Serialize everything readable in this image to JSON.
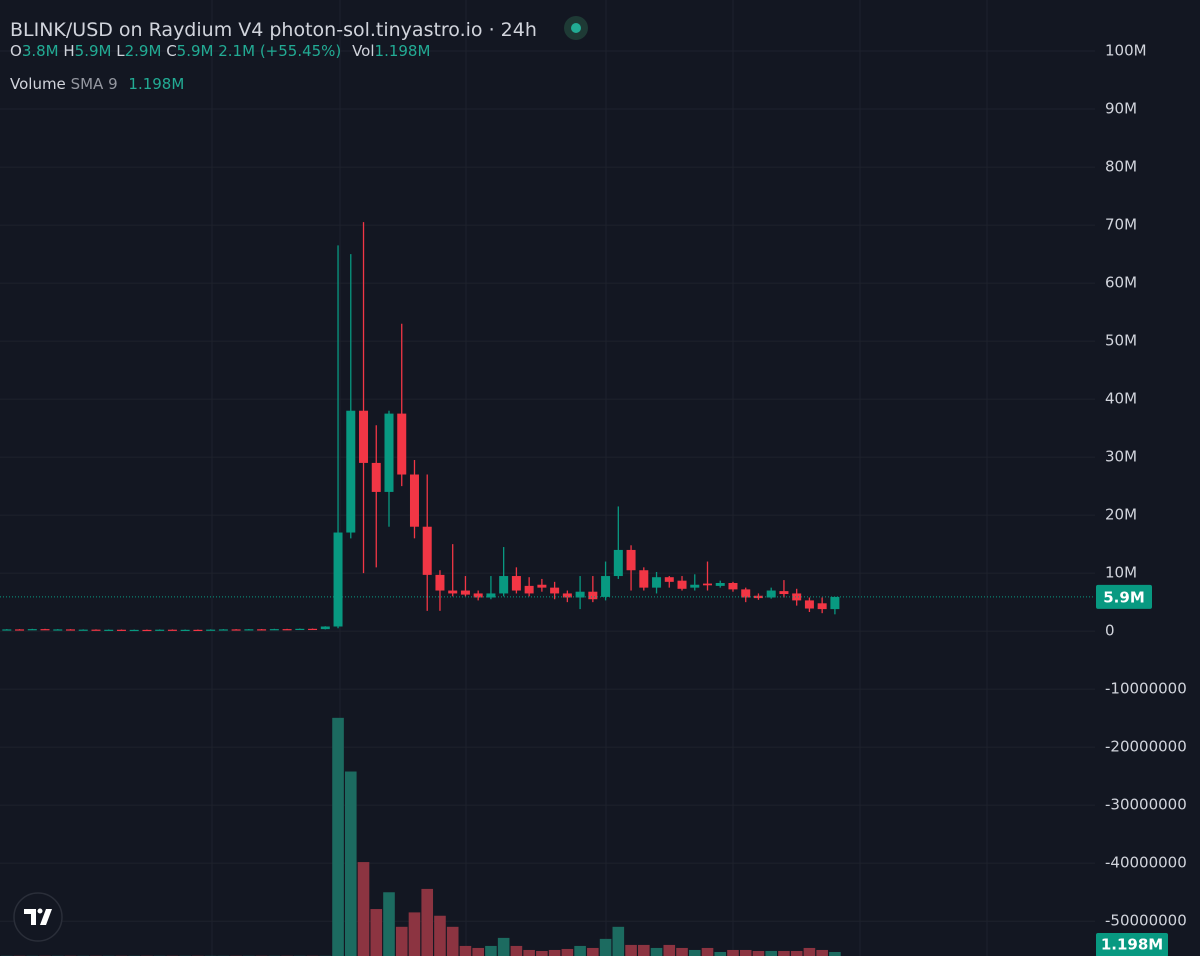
{
  "chart_data": {
    "type": "candlestick",
    "title": "BLINK/USD on Raydium V4 photon-sol.tinyastro.io · 24h",
    "readout": [
      {
        "label": "O",
        "value": "3.8M"
      },
      {
        "label": "H",
        "value": "5.9M"
      },
      {
        "label": "L",
        "value": "2.9M"
      },
      {
        "label": "C",
        "value": "5.9M"
      }
    ],
    "change": "2.1M (+55.45%)",
    "vol_label": "Vol",
    "vol_value": "1.198M",
    "up_color": "#089981",
    "down_color": "#f23645",
    "grid": true,
    "ylim": [
      -56000000,
      108800000
    ],
    "yticks": [
      {
        "value": 100000000,
        "label": "100M"
      },
      {
        "value": 90000000,
        "label": "90M"
      },
      {
        "value": 80000000,
        "label": "80M"
      },
      {
        "value": 70000000,
        "label": "70M"
      },
      {
        "value": 60000000,
        "label": "60M"
      },
      {
        "value": 50000000,
        "label": "50M"
      },
      {
        "value": 40000000,
        "label": "40M"
      },
      {
        "value": 30000000,
        "label": "30M"
      },
      {
        "value": 20000000,
        "label": "20M"
      },
      {
        "value": 10000000,
        "label": "10M"
      },
      0,
      -10000000,
      -20000000,
      -30000000,
      -40000000,
      -50000000
    ],
    "last_price": 5900000,
    "last_price_label": "5.9M",
    "open": [
      200000,
      300000,
      250000,
      350000,
      280000,
      300000,
      220000,
      260000,
      200000,
      240000,
      180000,
      220000,
      200000,
      250000,
      210000,
      230000,
      190000,
      260000,
      300000,
      260000,
      320000,
      280000,
      350000,
      300000,
      400000,
      350000,
      800000,
      17000000,
      38000000,
      29000000,
      24000000,
      37500000,
      27000000,
      18000000,
      9700000,
      7000000,
      7000000,
      6500000,
      5800000,
      6500000,
      9500000,
      7800000,
      8000000,
      7500000,
      6500000,
      5800000,
      6800000,
      5900000,
      9500000,
      14000000,
      10500000,
      7500000,
      9300000,
      8700000,
      7500000,
      8200000,
      7800000,
      8300000,
      7200000,
      6100000,
      5800000,
      6900000,
      6500000,
      5300000,
      4800000,
      3800000
    ],
    "high": [
      350000,
      350000,
      400000,
      400000,
      350000,
      350000,
      310000,
      310000,
      290000,
      290000,
      270000,
      270000,
      300000,
      300000,
      280000,
      280000,
      310000,
      350000,
      350000,
      370000,
      370000,
      400000,
      400000,
      450000,
      450000,
      850000,
      66500000,
      65000000,
      70500000,
      35500000,
      38000000,
      53000000,
      29500000,
      27000000,
      10500000,
      15000000,
      9500000,
      7000000,
      9500000,
      14500000,
      11000000,
      9300000,
      9000000,
      8500000,
      7000000,
      9500000,
      9500000,
      12000000,
      21500000,
      14800000,
      11000000,
      10200000,
      9500000,
      9500000,
      9800000,
      12000000,
      8700000,
      8500000,
      7500000,
      6500000,
      7500000,
      8800000,
      7300000,
      5800000,
      5800000,
      5900000
    ],
    "low": [
      150000,
      200000,
      200000,
      230000,
      230000,
      170000,
      170000,
      150000,
      150000,
      130000,
      130000,
      150000,
      150000,
      160000,
      160000,
      140000,
      140000,
      210000,
      210000,
      210000,
      230000,
      230000,
      250000,
      250000,
      300000,
      300000,
      500000,
      16000000,
      10000000,
      11000000,
      18000000,
      25000000,
      16000000,
      3500000,
      3500000,
      6000000,
      6000000,
      5300000,
      5500000,
      6000000,
      6500000,
      6000000,
      6800000,
      5500000,
      5000000,
      3800000,
      5000000,
      5300000,
      9000000,
      7000000,
      7000000,
      6500000,
      7500000,
      7000000,
      7000000,
      7000000,
      7500000,
      6800000,
      5000000,
      5400000,
      5600000,
      5800000,
      4400000,
      3300000,
      3100000,
      2900000
    ],
    "close": [
      300000,
      250000,
      350000,
      280000,
      300000,
      220000,
      260000,
      200000,
      240000,
      180000,
      220000,
      200000,
      250000,
      210000,
      230000,
      190000,
      260000,
      300000,
      260000,
      320000,
      280000,
      350000,
      300000,
      400000,
      350000,
      800000,
      17000000,
      38000000,
      29000000,
      24000000,
      37500000,
      27000000,
      18000000,
      9700000,
      7000000,
      6500000,
      6300000,
      5800000,
      6500000,
      9500000,
      7000000,
      6500000,
      7500000,
      6500000,
      5800000,
      6800000,
      5500000,
      9500000,
      14000000,
      10500000,
      7500000,
      9300000,
      8500000,
      7300000,
      8000000,
      7900000,
      8300000,
      7200000,
      5800000,
      5700000,
      7000000,
      6400000,
      5300000,
      3900000,
      3800000,
      5900000
    ],
    "y2lim": [
      0,
      285000000
    ],
    "volume": {
      "name": "Volume",
      "study": "SMA 9",
      "sma_value": "1.198M",
      "axis": "y2",
      "up_color": "#1c6b60",
      "down_color": "#8c3441",
      "last_label": "1.198M",
      "values": [
        50000,
        50000,
        50000,
        50000,
        50000,
        50000,
        50000,
        50000,
        50000,
        50000,
        50000,
        50000,
        50000,
        50000,
        50000,
        50000,
        50000,
        50000,
        50000,
        50000,
        50000,
        50000,
        50000,
        50000,
        50000,
        50000,
        71000000,
        55000000,
        28000000,
        14000000,
        19000000,
        8700000,
        13000000,
        20000000,
        12000000,
        8700000,
        3000000,
        2400000,
        3000000,
        5400000,
        3000000,
        1800000,
        1500000,
        1800000,
        2100000,
        3000000,
        2400000,
        5100000,
        8700000,
        3300000,
        3300000,
        2400000,
        3300000,
        2400000,
        1800000,
        2400000,
        1200000,
        1800000,
        1800000,
        1500000,
        1500000,
        1500000,
        1500000,
        2400000,
        1800000,
        1198000
      ]
    }
  }
}
